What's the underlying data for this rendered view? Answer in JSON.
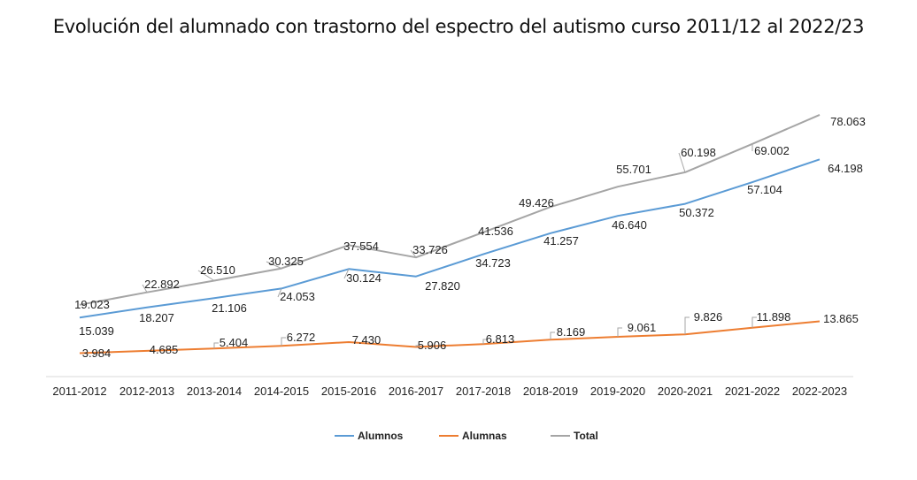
{
  "chart_data": {
    "type": "line",
    "title": "Evolución del alumnado con trastorno del espectro del autismo curso 2011/12 al 2022/23",
    "xlabel": "",
    "ylabel": "",
    "categories": [
      "2011-2012",
      "2012-2013",
      "2013-2014",
      "2014-2015",
      "2015-2016",
      "2016-2017",
      "2017-2018",
      "2018-2019",
      "2019-2020",
      "2020-2021",
      "2021-2022",
      "2022-2023"
    ],
    "series": [
      {
        "name": "Alumnos",
        "color": "#5b9bd5",
        "values": [
          15039,
          18207,
          21106,
          24053,
          30124,
          27820,
          34723,
          41257,
          46640,
          50372,
          57104,
          64198
        ],
        "labels": [
          "15.039",
          "18.207",
          "21.106",
          "24.053",
          "30.124",
          "27.820",
          "34.723",
          "41.257",
          "46.640",
          "50.372",
          "57.104",
          "64.198"
        ]
      },
      {
        "name": "Alumnas",
        "color": "#ed7d31",
        "values": [
          3984,
          4685,
          5404,
          6272,
          7430,
          5906,
          6813,
          8169,
          9061,
          9826,
          11898,
          13865
        ],
        "labels": [
          "3.984",
          "4.685",
          "5.404",
          "6.272",
          "7.430",
          "5.906",
          "6.813",
          "8.169",
          "9.061",
          "9.826",
          "11.898",
          "13.865"
        ]
      },
      {
        "name": "Total",
        "color": "#a5a5a5",
        "values": [
          19023,
          22892,
          26510,
          30325,
          37554,
          33726,
          41536,
          49426,
          55701,
          60198,
          69002,
          78063
        ],
        "labels": [
          "19.023",
          "22.892",
          "26.510",
          "30.325",
          "37.554",
          "33.726",
          "41.536",
          "49.426",
          "55.701",
          "60.198",
          "69.002",
          "78.063"
        ]
      }
    ],
    "legend_position": "bottom",
    "grid": false
  }
}
